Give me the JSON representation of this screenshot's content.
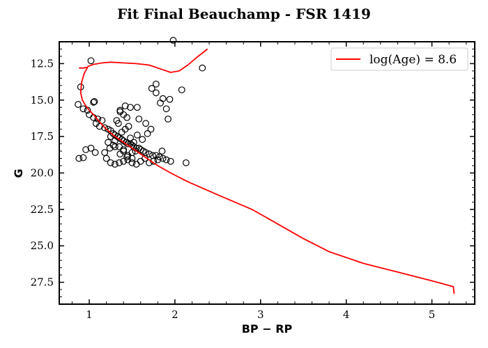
{
  "chart_data": {
    "type": "scatter",
    "title": "Fit Final Beauchamp - FSR 1419",
    "xlabel": "BP − RP",
    "ylabel": "G",
    "xlim": [
      0.65,
      5.5
    ],
    "ylim": [
      29.0,
      11.0
    ],
    "y_inverted": true,
    "x_ticks": [
      1,
      2,
      3,
      4,
      5
    ],
    "y_ticks": [
      12.5,
      15.0,
      17.5,
      20.0,
      22.5,
      25.0,
      27.5
    ],
    "y_tick_labels": [
      "12.5",
      "15.0",
      "17.5",
      "20.0",
      "22.5",
      "25.0",
      "27.5"
    ],
    "grid": false,
    "legend_position": "top-right",
    "legend": [
      {
        "label": "log(Age) = 8.6",
        "color": "#ff0000",
        "marker": "line"
      }
    ],
    "isochrone": {
      "name": "log(Age) = 8.6",
      "color": "#ff0000",
      "x": [
        0.88,
        0.93,
        0.98,
        0.94,
        0.91,
        0.9,
        0.92,
        0.96,
        1.0,
        1.05,
        1.12,
        1.2,
        1.3,
        1.4,
        1.5,
        1.6,
        1.7,
        1.8,
        1.95,
        2.15,
        2.5,
        2.9,
        3.2,
        3.5,
        3.8,
        4.2,
        4.6,
        5.0,
        5.25,
        5.26
      ],
      "y": [
        12.8,
        12.8,
        12.75,
        13.2,
        13.8,
        14.5,
        15.0,
        15.4,
        15.7,
        16.0,
        16.5,
        17.0,
        17.5,
        17.9,
        18.3,
        18.7,
        19.1,
        19.5,
        20.0,
        20.6,
        21.5,
        22.5,
        23.5,
        24.5,
        25.4,
        26.2,
        26.8,
        27.4,
        27.8,
        28.3
      ]
    },
    "isochrone_upper": {
      "x": [
        0.98,
        1.05,
        1.15,
        1.25,
        1.4,
        1.55,
        1.7,
        1.85,
        1.95,
        2.05,
        2.15,
        2.25,
        2.38
      ],
      "y": [
        12.7,
        12.55,
        12.45,
        12.4,
        12.45,
        12.5,
        12.6,
        12.9,
        13.1,
        13.0,
        12.6,
        12.1,
        11.5
      ]
    },
    "stars": {
      "x": [
        1.98,
        1.02,
        2.32,
        0.9,
        1.78,
        2.08,
        1.73,
        1.78,
        1.06,
        1.05,
        1.86,
        1.94,
        1.83,
        0.87,
        1.36,
        1.42,
        1.48,
        1.56,
        1.9,
        1.92,
        0.93,
        0.98,
        1.0,
        1.05,
        1.1,
        1.15,
        1.08,
        1.12,
        1.18,
        1.22,
        1.25,
        1.28,
        1.3,
        1.33,
        1.35,
        1.38,
        1.4,
        1.43,
        1.45,
        1.48,
        1.5,
        1.52,
        1.55,
        1.58,
        1.6,
        1.63,
        1.66,
        1.7,
        1.74,
        1.78,
        1.82,
        1.86,
        1.9,
        1.95,
        2.13,
        0.88,
        0.93,
        0.96,
        1.02,
        1.07,
        1.2,
        1.25,
        1.3,
        1.35,
        1.4,
        1.45,
        1.5,
        1.55,
        1.6,
        1.65,
        1.7,
        1.75,
        1.8,
        1.85,
        1.25,
        1.3,
        1.35,
        1.4,
        1.45,
        1.5,
        1.38,
        1.42,
        1.46,
        1.34,
        1.44,
        1.4,
        1.36,
        1.32,
        1.48,
        1.52,
        1.28,
        1.24,
        1.56,
        1.62,
        1.68,
        1.72,
        1.66,
        1.58,
        1.22,
        1.18,
        1.44,
        1.4,
        1.36,
        1.3,
        1.5,
        1.54
      ],
      "y": [
        10.9,
        12.3,
        12.8,
        14.1,
        13.9,
        14.3,
        14.2,
        14.5,
        15.1,
        15.15,
        14.9,
        14.95,
        15.2,
        15.3,
        15.7,
        15.4,
        15.5,
        15.5,
        15.6,
        16.3,
        15.6,
        15.7,
        16.0,
        16.2,
        16.3,
        16.4,
        16.6,
        16.8,
        16.9,
        17.0,
        17.1,
        17.3,
        17.4,
        17.5,
        17.6,
        17.7,
        17.8,
        17.9,
        18.0,
        18.0,
        18.1,
        18.2,
        18.3,
        18.3,
        18.4,
        18.5,
        18.6,
        18.7,
        18.8,
        18.8,
        18.9,
        19.0,
        19.1,
        19.2,
        19.3,
        19.0,
        18.95,
        18.4,
        18.3,
        18.6,
        19.0,
        19.3,
        19.4,
        19.3,
        19.2,
        19.1,
        19.3,
        19.4,
        19.2,
        19.0,
        19.3,
        19.2,
        19.1,
        18.5,
        17.5,
        17.8,
        18.2,
        18.5,
        18.8,
        18.6,
        17.2,
        17.0,
        16.8,
        16.6,
        16.2,
        16.0,
        15.8,
        16.4,
        17.6,
        17.9,
        18.1,
        18.3,
        17.4,
        17.7,
        17.3,
        17.0,
        16.6,
        16.3,
        17.9,
        18.6,
        18.9,
        18.4,
        18.7,
        18.2,
        19.0,
        18.5
      ]
    }
  }
}
